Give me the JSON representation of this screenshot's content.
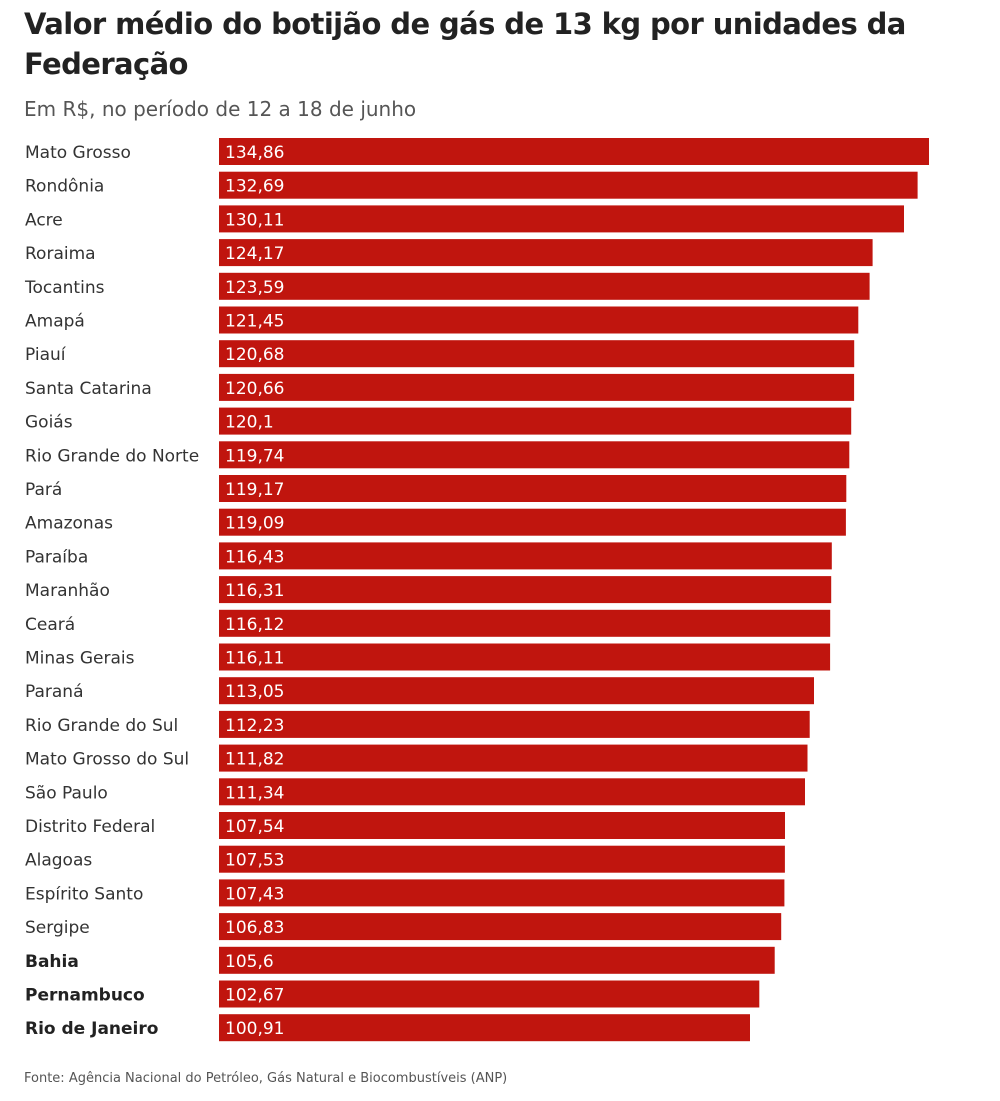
{
  "chart_data": {
    "type": "bar",
    "orientation": "horizontal",
    "title": "Valor médio do botijão de gás de 13 kg por unidades da Federação",
    "subtitle": "Em R$, no período de 12 a 18 de junho",
    "source": "Fonte: Agência Nacional do Petróleo, Gás Natural e Biocombustíveis (ANP)",
    "bar_color": "#c0150e",
    "label_color": "#ffffff",
    "categories": [
      "Mato Grosso",
      "Rondônia",
      "Acre",
      "Roraima",
      "Tocantins",
      "Amapá",
      "Piauí",
      "Santa Catarina",
      "Goiás",
      "Rio Grande do Norte",
      "Pará",
      "Amazonas",
      "Paraíba",
      "Maranhão",
      "Ceará",
      "Minas Gerais",
      "Paraná",
      "Rio Grande do Sul",
      "Mato Grosso do Sul",
      "São Paulo",
      "Distrito Federal",
      "Alagoas",
      "Espírito Santo",
      "Sergipe",
      "Bahia",
      "Pernambuco",
      "Rio de Janeiro"
    ],
    "values": [
      134.86,
      132.69,
      130.11,
      124.17,
      123.59,
      121.45,
      120.68,
      120.66,
      120.1,
      119.74,
      119.17,
      119.09,
      116.43,
      116.31,
      116.12,
      116.11,
      113.05,
      112.23,
      111.82,
      111.34,
      107.54,
      107.53,
      107.43,
      106.83,
      105.6,
      102.67,
      100.91
    ],
    "value_labels": [
      "134,86",
      "132,69",
      "130,11",
      "124,17",
      "123,59",
      "121,45",
      "120,68",
      "120,66",
      "120,1",
      "119,74",
      "119,17",
      "119,09",
      "116,43",
      "116,31",
      "116,12",
      "116,11",
      "113,05",
      "112,23",
      "111,82",
      "111,34",
      "107,54",
      "107,53",
      "107,43",
      "106,83",
      "105,6",
      "102,67",
      "100,91"
    ],
    "highlighted": [
      "Bahia",
      "Pernambuco",
      "Rio de Janeiro"
    ],
    "xlim": [
      0,
      134.86
    ],
    "grid": false,
    "legend": "none"
  }
}
